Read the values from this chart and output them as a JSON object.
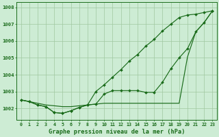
{
  "xlabel": "Graphe pression niveau de la mer (hPa)",
  "xlim": [
    -0.5,
    23.5
  ],
  "ylim": [
    1001.3,
    1008.3
  ],
  "yticks": [
    1002,
    1003,
    1004,
    1005,
    1006,
    1007,
    1008
  ],
  "xticks": [
    0,
    1,
    2,
    3,
    4,
    5,
    6,
    7,
    8,
    9,
    10,
    11,
    12,
    13,
    14,
    15,
    16,
    17,
    18,
    19,
    20,
    21,
    22,
    23
  ],
  "bg_color": "#cdecd4",
  "line_color": "#1a6b1a",
  "grid_color": "#a0c8a0",
  "line_flat": [
    1002.5,
    1002.4,
    1002.3,
    1002.2,
    1002.15,
    1002.1,
    1002.1,
    1002.15,
    1002.2,
    1002.25,
    1002.3,
    1002.3,
    1002.3,
    1002.3,
    1002.3,
    1002.3,
    1002.3,
    1002.3,
    1002.3,
    1002.3,
    1005.05,
    1006.55,
    1007.1,
    1007.8
  ],
  "line_mid": [
    1002.5,
    1002.4,
    1002.2,
    1002.1,
    1001.75,
    1001.7,
    1001.85,
    1002.05,
    1002.2,
    1002.25,
    1002.85,
    1003.05,
    1003.05,
    1003.05,
    1003.05,
    1002.95,
    1002.95,
    1003.55,
    1004.35,
    1005.0,
    1005.55,
    1006.55,
    1007.1,
    1007.8
  ],
  "line_steep": [
    1002.5,
    1002.4,
    1002.2,
    1002.1,
    1001.75,
    1001.7,
    1001.85,
    1002.05,
    1002.2,
    1003.0,
    1003.4,
    1003.85,
    1004.3,
    1004.8,
    1005.2,
    1005.7,
    1006.1,
    1006.6,
    1007.0,
    1007.4,
    1007.55,
    1007.6,
    1007.7,
    1007.8
  ]
}
